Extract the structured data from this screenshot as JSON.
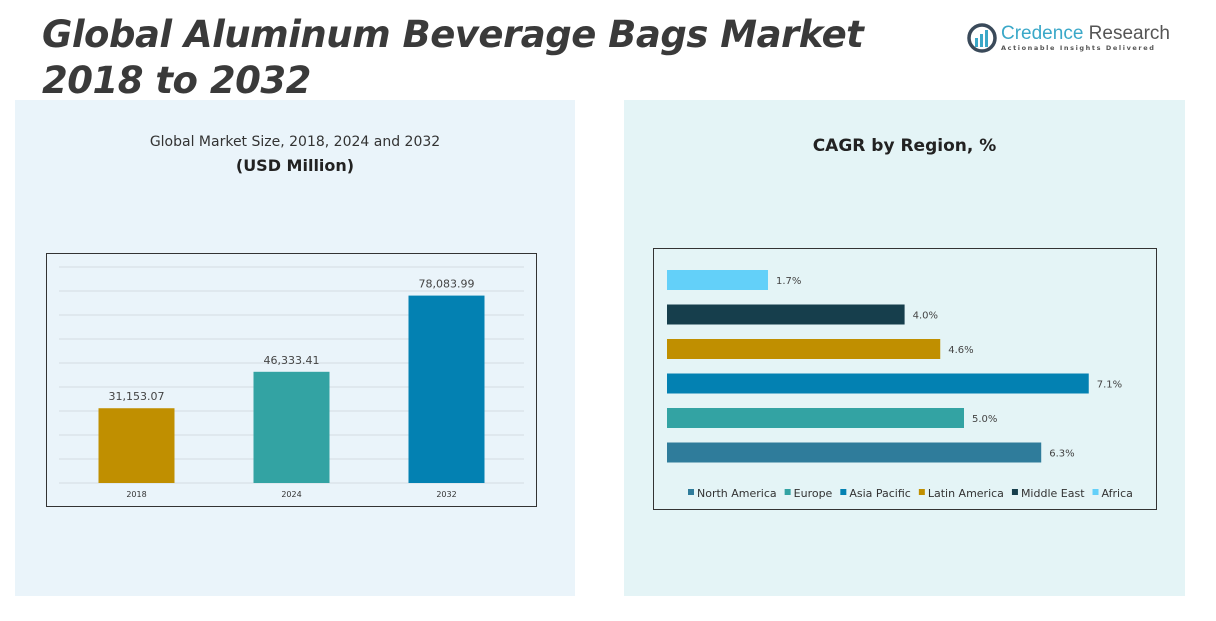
{
  "header": {
    "title_line1": "Global Aluminum Beverage Bags Market",
    "title_line2": "2018 to 2032"
  },
  "logo": {
    "name_part1": "Credence",
    "name_part2": "Research",
    "tagline": "Actionable Insights Delivered"
  },
  "colors": {
    "gold": "#c08f00",
    "teal": "#33a3a3",
    "blue": "#0381b2",
    "steel": "#2f7c9b",
    "dark": "#163e4c",
    "light": "#63d0f9"
  },
  "chart_data": [
    {
      "type": "bar",
      "title": "Global Market Size, 2018, 2024 and 2032",
      "subtitle": "(USD Million)",
      "categories": [
        "2018",
        "2024",
        "2032"
      ],
      "values": [
        31153.07,
        46333.41,
        78083.99
      ],
      "value_labels": [
        "31,153.07",
        "46,333.41",
        "78,083.99"
      ],
      "colors": [
        "#c08f00",
        "#33a3a3",
        "#0381b2"
      ],
      "ylim": [
        0,
        90000
      ],
      "grid": true
    },
    {
      "type": "bar",
      "orientation": "horizontal",
      "title": "CAGR by Region, %",
      "categories": [
        "North America",
        "Europe",
        "Asia Pacific",
        "Latin America",
        "Middle East",
        "Africa"
      ],
      "values": [
        6.3,
        5.0,
        7.1,
        4.6,
        4.0,
        1.7
      ],
      "value_labels": [
        "6.3%",
        "5.0%",
        "7.1%",
        "4.6%",
        "4.0%",
        "1.7%"
      ],
      "colors": [
        "#2f7c9b",
        "#33a3a3",
        "#0381b2",
        "#c08f00",
        "#163e4c",
        "#63d0f9"
      ],
      "xlim": [
        0,
        8
      ],
      "grid": false,
      "legend": "bottom"
    }
  ]
}
